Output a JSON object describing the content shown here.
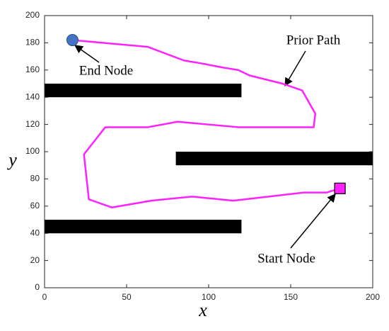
{
  "chart_data": {
    "type": "line",
    "xlabel": "x",
    "ylabel": "y",
    "xlim": [
      0,
      200
    ],
    "ylim": [
      0,
      200
    ],
    "xticks": [
      0,
      50,
      100,
      150,
      200
    ],
    "yticks": [
      0,
      20,
      40,
      60,
      80,
      100,
      120,
      140,
      160,
      180,
      200
    ],
    "grid": false,
    "series": [
      {
        "name": "Prior Path",
        "color": "#ff22ff",
        "x": [
          180,
          172,
          158,
          115,
          90,
          65,
          41,
          27,
          24,
          37,
          63,
          81,
          118,
          164,
          165,
          157,
          145,
          125,
          118,
          108,
          95,
          85,
          63,
          17
        ],
        "values": [
          73,
          70,
          70,
          64,
          67,
          64,
          59,
          65,
          98,
          118,
          118,
          122,
          118,
          118,
          128,
          145,
          150,
          156,
          160,
          162,
          165,
          167,
          177,
          182
        ]
      }
    ],
    "obstacles": [
      {
        "x": [
          0,
          120
        ],
        "y": [
          140,
          150
        ]
      },
      {
        "x": [
          80,
          200
        ],
        "y": [
          90,
          100
        ]
      },
      {
        "x": [
          0,
          120
        ],
        "y": [
          40,
          50
        ]
      }
    ],
    "obstacle_color": "#000000",
    "start_node": {
      "label": "Start Node",
      "x": 180,
      "y": 73,
      "color": "#ff22ff"
    },
    "end_node": {
      "label": "End Node",
      "x": 17,
      "y": 182,
      "color": "#4472c4"
    }
  }
}
